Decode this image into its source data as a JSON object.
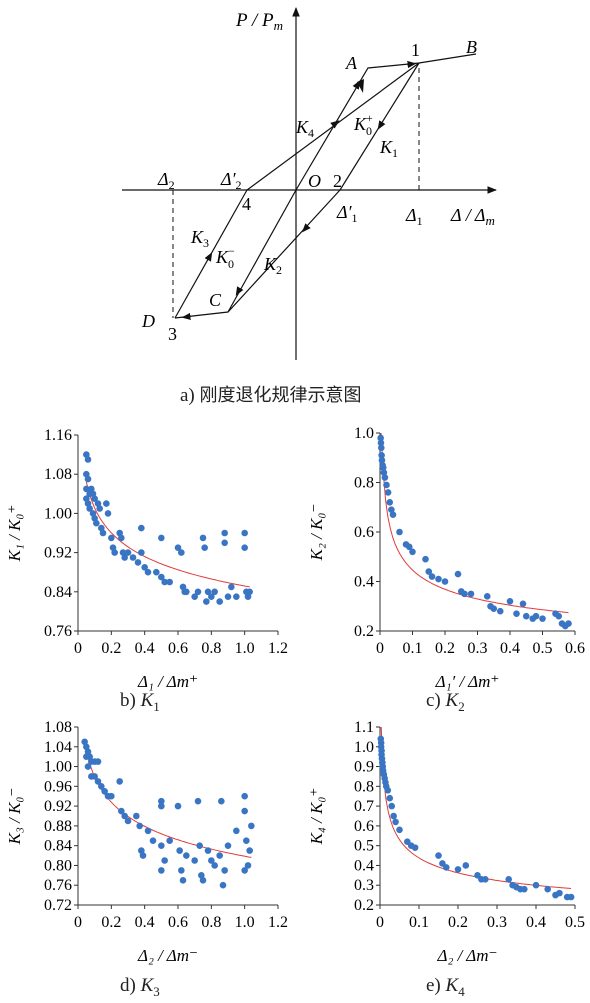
{
  "diagram": {
    "caption_prefix": "a)",
    "caption_text": "刚度退化规律示意图",
    "y_axis_label": "P / P",
    "y_axis_sub": "m",
    "x_axis_label": "Δ / Δ",
    "x_axis_sub": "m",
    "points": {
      "p1": "1",
      "p2": "2",
      "p3": "3",
      "p4": "4",
      "A": "A",
      "B": "B",
      "C": "C",
      "D": "D",
      "O": "O"
    },
    "delta1": "Δ",
    "delta1_sub": "1",
    "delta1p": "Δ′",
    "delta1p_sub": "1",
    "delta2": "Δ",
    "delta2_sub": "2",
    "delta2p": "Δ′",
    "delta2p_sub": "2",
    "K1": "K",
    "K1_sub": "1",
    "K2": "K",
    "K2_sub": "2",
    "K3": "K",
    "K3_sub": "3",
    "K4": "K",
    "K4_sub": "4",
    "K0p": "K",
    "K0p_sub": "0",
    "K0p_sup": "+",
    "K0m": "K",
    "K0m_sub": "0",
    "K0m_sup": "−"
  },
  "chart_data": [
    {
      "id": "b",
      "type": "scatter",
      "caption_prefix": "b)",
      "caption_symbol": "K",
      "caption_sub": "1",
      "ylabel": "K₁ / K₀⁺",
      "xlabel": "Δ₁ / Δm⁺",
      "xlim": [
        0,
        1.2
      ],
      "ylim": [
        0.76,
        1.16
      ],
      "xticks": [
        "0",
        "0.2",
        "0.4",
        "0.6",
        "0.8",
        "1.0",
        "1.2"
      ],
      "yticks": [
        "0.76",
        "0.84",
        "0.92",
        "1.00",
        "1.08",
        "1.16"
      ],
      "point_color": "#3a75c4",
      "fit_color": "#e03c3c",
      "fit": {
        "a": 0.76,
        "b": 0.0,
        "x0": 0.05,
        "xmax": 1.03,
        "form": "power"
      },
      "points": [
        [
          0.05,
          1.12
        ],
        [
          0.06,
          1.11
        ],
        [
          0.05,
          1.08
        ],
        [
          0.06,
          1.07
        ],
        [
          0.05,
          1.05
        ],
        [
          0.07,
          1.04
        ],
        [
          0.05,
          1.03
        ],
        [
          0.06,
          1.02
        ],
        [
          0.07,
          1.01
        ],
        [
          0.08,
          1.05
        ],
        [
          0.09,
          1.04
        ],
        [
          0.1,
          1.03
        ],
        [
          0.09,
          1.0
        ],
        [
          0.1,
          0.99
        ],
        [
          0.11,
          0.98
        ],
        [
          0.12,
          1.02
        ],
        [
          0.13,
          1.01
        ],
        [
          0.14,
          0.97
        ],
        [
          0.15,
          0.96
        ],
        [
          0.17,
          1.02
        ],
        [
          0.18,
          1.0
        ],
        [
          0.2,
          0.95
        ],
        [
          0.21,
          0.93
        ],
        [
          0.22,
          0.92
        ],
        [
          0.25,
          0.96
        ],
        [
          0.26,
          0.95
        ],
        [
          0.27,
          0.92
        ],
        [
          0.28,
          0.91
        ],
        [
          0.3,
          0.92
        ],
        [
          0.33,
          0.91
        ],
        [
          0.36,
          0.9
        ],
        [
          0.38,
          0.97
        ],
        [
          0.38,
          0.92
        ],
        [
          0.4,
          0.89
        ],
        [
          0.42,
          0.88
        ],
        [
          0.47,
          0.88
        ],
        [
          0.5,
          0.95
        ],
        [
          0.5,
          0.87
        ],
        [
          0.52,
          0.86
        ],
        [
          0.55,
          0.86
        ],
        [
          0.6,
          0.93
        ],
        [
          0.62,
          0.92
        ],
        [
          0.63,
          0.85
        ],
        [
          0.64,
          0.84
        ],
        [
          0.65,
          0.84
        ],
        [
          0.7,
          0.83
        ],
        [
          0.72,
          0.84
        ],
        [
          0.75,
          0.95
        ],
        [
          0.76,
          0.93
        ],
        [
          0.77,
          0.82
        ],
        [
          0.78,
          0.84
        ],
        [
          0.8,
          0.83
        ],
        [
          0.82,
          0.84
        ],
        [
          0.85,
          0.82
        ],
        [
          0.88,
          0.96
        ],
        [
          0.88,
          0.94
        ],
        [
          0.9,
          0.83
        ],
        [
          0.92,
          0.85
        ],
        [
          0.95,
          0.83
        ],
        [
          1.0,
          0.96
        ],
        [
          1.0,
          0.93
        ],
        [
          1.01,
          0.84
        ],
        [
          1.02,
          0.83
        ],
        [
          1.03,
          0.84
        ]
      ]
    },
    {
      "id": "c",
      "type": "scatter",
      "caption_prefix": "c)",
      "caption_symbol": "K",
      "caption_sub": "2",
      "ylabel": "K₂ / K₀⁻",
      "xlabel": "Δ₁′ / Δm⁺",
      "xlim": [
        0,
        0.6
      ],
      "ylim": [
        0.2,
        1.0
      ],
      "xticks": [
        "0",
        "0.1",
        "0.2",
        "0.3",
        "0.4",
        "0.5",
        "0.6"
      ],
      "yticks": [
        "0.2",
        "0.4",
        "0.6",
        "0.8",
        "1.0"
      ],
      "point_color": "#3a75c4",
      "fit_color": "#e03c3c",
      "points": [
        [
          0.002,
          0.98
        ],
        [
          0.003,
          0.96
        ],
        [
          0.004,
          0.94
        ],
        [
          0.005,
          0.91
        ],
        [
          0.006,
          0.89
        ],
        [
          0.008,
          0.87
        ],
        [
          0.01,
          0.86
        ],
        [
          0.012,
          0.84
        ],
        [
          0.015,
          0.82
        ],
        [
          0.02,
          0.79
        ],
        [
          0.025,
          0.76
        ],
        [
          0.03,
          0.72
        ],
        [
          0.035,
          0.69
        ],
        [
          0.04,
          0.67
        ],
        [
          0.06,
          0.6
        ],
        [
          0.08,
          0.55
        ],
        [
          0.09,
          0.54
        ],
        [
          0.1,
          0.52
        ],
        [
          0.14,
          0.49
        ],
        [
          0.15,
          0.44
        ],
        [
          0.16,
          0.42
        ],
        [
          0.18,
          0.41
        ],
        [
          0.2,
          0.4
        ],
        [
          0.24,
          0.43
        ],
        [
          0.25,
          0.36
        ],
        [
          0.26,
          0.35
        ],
        [
          0.28,
          0.35
        ],
        [
          0.33,
          0.34
        ],
        [
          0.34,
          0.3
        ],
        [
          0.35,
          0.29
        ],
        [
          0.37,
          0.28
        ],
        [
          0.4,
          0.32
        ],
        [
          0.42,
          0.27
        ],
        [
          0.44,
          0.31
        ],
        [
          0.45,
          0.26
        ],
        [
          0.47,
          0.25
        ],
        [
          0.48,
          0.26
        ],
        [
          0.5,
          0.25
        ],
        [
          0.54,
          0.27
        ],
        [
          0.55,
          0.26
        ],
        [
          0.56,
          0.23
        ],
        [
          0.57,
          0.22
        ],
        [
          0.58,
          0.23
        ]
      ]
    },
    {
      "id": "d",
      "type": "scatter",
      "caption_prefix": "d)",
      "caption_symbol": "K",
      "caption_sub": "3",
      "ylabel": "K₃ / K₀⁻",
      "xlabel": "Δ₂ / Δm⁻",
      "xlim": [
        0,
        1.2
      ],
      "ylim": [
        0.72,
        1.08
      ],
      "xticks": [
        "0",
        "0.2",
        "0.4",
        "0.6",
        "0.8",
        "1.0",
        "1.2"
      ],
      "yticks": [
        "0.72",
        "0.76",
        "0.80",
        "0.84",
        "0.88",
        "0.92",
        "0.96",
        "1.00",
        "1.04",
        "1.08"
      ],
      "point_color": "#3a75c4",
      "fit_color": "#e03c3c",
      "points": [
        [
          0.04,
          1.05
        ],
        [
          0.05,
          1.04
        ],
        [
          0.06,
          1.03
        ],
        [
          0.05,
          1.02
        ],
        [
          0.07,
          1.02
        ],
        [
          0.08,
          1.01
        ],
        [
          0.06,
          1.0
        ],
        [
          0.1,
          1.01
        ],
        [
          0.12,
          1.01
        ],
        [
          0.08,
          0.98
        ],
        [
          0.1,
          0.98
        ],
        [
          0.12,
          0.97
        ],
        [
          0.14,
          0.96
        ],
        [
          0.16,
          0.95
        ],
        [
          0.18,
          0.94
        ],
        [
          0.2,
          0.94
        ],
        [
          0.25,
          0.97
        ],
        [
          0.26,
          0.91
        ],
        [
          0.28,
          0.9
        ],
        [
          0.3,
          0.89
        ],
        [
          0.35,
          0.9
        ],
        [
          0.37,
          0.88
        ],
        [
          0.38,
          0.83
        ],
        [
          0.39,
          0.82
        ],
        [
          0.42,
          0.87
        ],
        [
          0.45,
          0.85
        ],
        [
          0.5,
          0.93
        ],
        [
          0.5,
          0.92
        ],
        [
          0.5,
          0.84
        ],
        [
          0.52,
          0.81
        ],
        [
          0.5,
          0.79
        ],
        [
          0.55,
          0.85
        ],
        [
          0.6,
          0.92
        ],
        [
          0.61,
          0.83
        ],
        [
          0.62,
          0.79
        ],
        [
          0.63,
          0.77
        ],
        [
          0.65,
          0.82
        ],
        [
          0.7,
          0.81
        ],
        [
          0.72,
          0.93
        ],
        [
          0.73,
          0.84
        ],
        [
          0.74,
          0.78
        ],
        [
          0.75,
          0.77
        ],
        [
          0.78,
          0.83
        ],
        [
          0.8,
          0.81
        ],
        [
          0.82,
          0.8
        ],
        [
          0.85,
          0.82
        ],
        [
          0.86,
          0.93
        ],
        [
          0.87,
          0.76
        ],
        [
          0.88,
          0.79
        ],
        [
          0.9,
          0.84
        ],
        [
          0.95,
          0.87
        ],
        [
          1.0,
          0.94
        ],
        [
          1.0,
          0.91
        ],
        [
          1.01,
          0.85
        ],
        [
          1.02,
          0.8
        ],
        [
          1.0,
          0.79
        ],
        [
          1.03,
          0.83
        ],
        [
          1.04,
          0.88
        ]
      ]
    },
    {
      "id": "e",
      "type": "scatter",
      "caption_prefix": "e)",
      "caption_symbol": "K",
      "caption_sub": "4",
      "ylabel": "K₄ / K₀⁺",
      "xlabel": "Δ₂ / Δm⁻",
      "xlim": [
        0,
        0.5
      ],
      "ylim": [
        0.2,
        1.1
      ],
      "xticks": [
        "0",
        "0.1",
        "0.2",
        "0.3",
        "0.4",
        "0.5"
      ],
      "yticks": [
        "0.2",
        "0.3",
        "0.4",
        "0.5",
        "0.6",
        "0.7",
        "0.8",
        "0.9",
        "1.0",
        "1.1"
      ],
      "point_color": "#3a75c4",
      "fit_color": "#e03c3c",
      "points": [
        [
          0.002,
          1.04
        ],
        [
          0.003,
          1.02
        ],
        [
          0.003,
          1.0
        ],
        [
          0.004,
          0.98
        ],
        [
          0.004,
          0.96
        ],
        [
          0.005,
          0.94
        ],
        [
          0.006,
          0.92
        ],
        [
          0.007,
          0.9
        ],
        [
          0.008,
          0.88
        ],
        [
          0.01,
          0.86
        ],
        [
          0.012,
          0.84
        ],
        [
          0.014,
          0.82
        ],
        [
          0.016,
          0.8
        ],
        [
          0.02,
          0.78
        ],
        [
          0.025,
          0.74
        ],
        [
          0.03,
          0.7
        ],
        [
          0.035,
          0.65
        ],
        [
          0.04,
          0.62
        ],
        [
          0.05,
          0.58
        ],
        [
          0.07,
          0.52
        ],
        [
          0.08,
          0.5
        ],
        [
          0.09,
          0.49
        ],
        [
          0.15,
          0.45
        ],
        [
          0.16,
          0.41
        ],
        [
          0.17,
          0.39
        ],
        [
          0.2,
          0.38
        ],
        [
          0.22,
          0.4
        ],
        [
          0.25,
          0.35
        ],
        [
          0.26,
          0.33
        ],
        [
          0.27,
          0.33
        ],
        [
          0.33,
          0.33
        ],
        [
          0.34,
          0.3
        ],
        [
          0.35,
          0.29
        ],
        [
          0.36,
          0.28
        ],
        [
          0.37,
          0.28
        ],
        [
          0.4,
          0.3
        ],
        [
          0.43,
          0.28
        ],
        [
          0.45,
          0.25
        ],
        [
          0.46,
          0.26
        ],
        [
          0.48,
          0.24
        ],
        [
          0.49,
          0.24
        ]
      ]
    }
  ]
}
